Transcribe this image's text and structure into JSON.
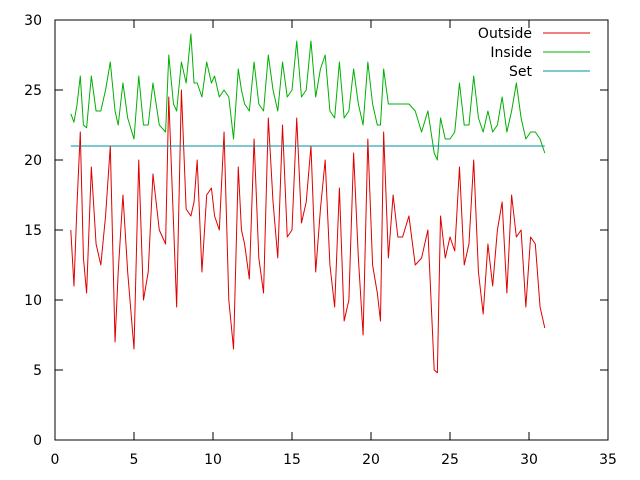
{
  "chart_data": {
    "type": "line",
    "title": "",
    "xlabel": "",
    "ylabel": "",
    "xlim": [
      0,
      35
    ],
    "ylim": [
      0,
      30
    ],
    "xticks": [
      0,
      5,
      10,
      15,
      20,
      25,
      30,
      35
    ],
    "yticks": [
      0,
      5,
      10,
      15,
      20,
      25,
      30
    ],
    "grid": false,
    "legend_position": "top-right",
    "series": [
      {
        "name": "Outside",
        "color": "#e00000",
        "x": [
          1.0,
          1.2,
          1.4,
          1.6,
          1.8,
          2.0,
          2.3,
          2.6,
          2.9,
          3.2,
          3.5,
          3.8,
          4.0,
          4.3,
          4.6,
          5.0,
          5.3,
          5.6,
          5.9,
          6.2,
          6.6,
          7.0,
          7.2,
          7.5,
          7.7,
          8.0,
          8.3,
          8.6,
          8.8,
          9.0,
          9.3,
          9.6,
          9.9,
          10.1,
          10.4,
          10.7,
          11.0,
          11.3,
          11.6,
          11.8,
          12.0,
          12.3,
          12.6,
          12.9,
          13.2,
          13.5,
          13.8,
          14.1,
          14.4,
          14.7,
          15.0,
          15.3,
          15.6,
          15.9,
          16.2,
          16.5,
          16.8,
          17.1,
          17.4,
          17.7,
          18.0,
          18.3,
          18.6,
          18.9,
          19.2,
          19.5,
          19.8,
          20.1,
          20.4,
          20.6,
          20.8,
          21.1,
          21.4,
          21.7,
          22.0,
          22.4,
          22.8,
          23.2,
          23.6,
          24.0,
          24.2,
          24.4,
          24.7,
          25.0,
          25.3,
          25.6,
          25.9,
          26.2,
          26.5,
          26.8,
          27.1,
          27.4,
          27.7,
          28.0,
          28.3,
          28.6,
          28.9,
          29.2,
          29.5,
          29.8,
          30.1,
          30.4,
          30.7,
          31.0
        ],
        "y": [
          15.0,
          11.0,
          17.0,
          22.0,
          13.0,
          10.5,
          19.5,
          14.0,
          12.5,
          16.0,
          21.0,
          7.0,
          12.0,
          17.5,
          12.0,
          6.5,
          20.0,
          10.0,
          12.0,
          19.0,
          15.0,
          14.0,
          24.5,
          15.5,
          9.5,
          25.0,
          16.5,
          16.0,
          17.0,
          20.0,
          12.0,
          17.5,
          18.0,
          16.0,
          15.0,
          22.0,
          10.0,
          6.5,
          19.5,
          15.0,
          14.0,
          11.5,
          21.5,
          13.0,
          10.5,
          23.0,
          17.0,
          13.0,
          22.5,
          14.5,
          15.0,
          23.0,
          15.5,
          17.0,
          21.0,
          12.0,
          16.5,
          20.0,
          12.5,
          9.5,
          18.0,
          8.5,
          10.0,
          20.5,
          13.0,
          7.5,
          21.5,
          12.5,
          10.5,
          8.5,
          22.0,
          13.0,
          17.5,
          14.5,
          14.5,
          16.0,
          12.5,
          13.0,
          15.0,
          5.0,
          4.8,
          16.0,
          13.0,
          14.5,
          13.5,
          19.5,
          12.5,
          14.0,
          20.0,
          12.0,
          9.0,
          14.0,
          11.0,
          15.0,
          17.0,
          10.5,
          17.5,
          14.5,
          15.0,
          9.5,
          14.5,
          14.0,
          9.5,
          8.0
        ]
      },
      {
        "name": "Inside",
        "color": "#00b000",
        "x": [
          1.0,
          1.2,
          1.4,
          1.6,
          1.8,
          2.0,
          2.3,
          2.6,
          2.9,
          3.2,
          3.5,
          3.8,
          4.0,
          4.3,
          4.6,
          5.0,
          5.3,
          5.6,
          5.9,
          6.2,
          6.6,
          7.0,
          7.2,
          7.5,
          7.7,
          8.0,
          8.3,
          8.6,
          8.8,
          9.0,
          9.3,
          9.6,
          9.9,
          10.1,
          10.4,
          10.7,
          11.0,
          11.3,
          11.6,
          11.8,
          12.0,
          12.3,
          12.6,
          12.9,
          13.2,
          13.5,
          13.8,
          14.1,
          14.4,
          14.7,
          15.0,
          15.3,
          15.6,
          15.9,
          16.2,
          16.5,
          16.8,
          17.1,
          17.4,
          17.7,
          18.0,
          18.3,
          18.6,
          18.9,
          19.2,
          19.5,
          19.8,
          20.1,
          20.4,
          20.6,
          20.8,
          21.1,
          21.4,
          21.7,
          22.0,
          22.4,
          22.8,
          23.2,
          23.6,
          24.0,
          24.2,
          24.4,
          24.7,
          25.0,
          25.3,
          25.6,
          25.9,
          26.2,
          26.5,
          26.8,
          27.1,
          27.4,
          27.7,
          28.0,
          28.3,
          28.6,
          28.9,
          29.2,
          29.5,
          29.8,
          30.1,
          30.4,
          30.7,
          31.0
        ],
        "y": [
          23.3,
          22.7,
          24.0,
          26.0,
          22.5,
          22.3,
          26.0,
          23.5,
          23.5,
          25.0,
          27.0,
          23.5,
          22.5,
          25.5,
          23.0,
          21.5,
          26.0,
          22.5,
          22.5,
          25.5,
          22.5,
          22.0,
          27.5,
          24.0,
          23.5,
          27.0,
          25.5,
          29.0,
          25.5,
          25.5,
          24.5,
          27.0,
          25.5,
          26.0,
          24.5,
          25.0,
          24.5,
          21.5,
          26.5,
          25.0,
          24.0,
          23.5,
          27.0,
          24.0,
          23.5,
          27.5,
          25.0,
          23.5,
          27.0,
          24.5,
          25.0,
          28.5,
          24.5,
          25.0,
          28.5,
          24.5,
          26.5,
          27.5,
          23.5,
          23.0,
          27.0,
          23.0,
          23.5,
          26.5,
          24.0,
          22.5,
          27.0,
          24.0,
          22.5,
          22.5,
          26.5,
          24.0,
          24.0,
          24.0,
          24.0,
          24.0,
          23.5,
          22.0,
          23.5,
          20.5,
          20.0,
          23.0,
          21.5,
          21.5,
          22.0,
          25.5,
          22.5,
          22.5,
          26.0,
          23.0,
          22.0,
          23.5,
          22.0,
          22.5,
          24.5,
          22.0,
          23.5,
          25.5,
          23.0,
          21.5,
          22.0,
          22.0,
          21.5,
          20.5
        ]
      },
      {
        "name": "Set",
        "color": "#0090a0",
        "x": [
          1.0,
          31.0
        ],
        "y": [
          21.0,
          21.0
        ]
      }
    ]
  }
}
